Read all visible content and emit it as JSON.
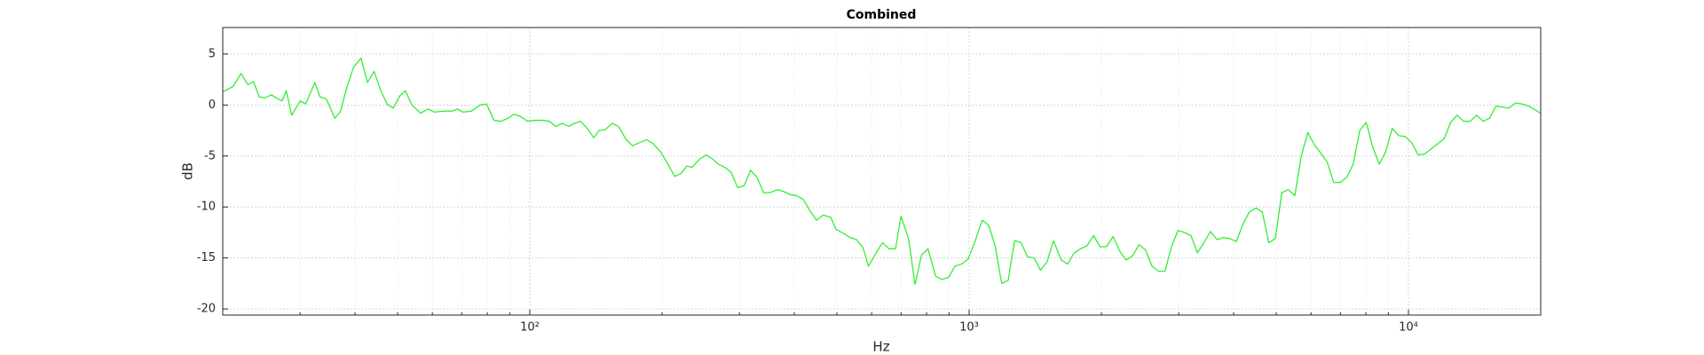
{
  "chart_data": {
    "type": "line",
    "title": "Combined",
    "x_label": "Hz",
    "y_label": "dB",
    "xscale": "log",
    "grid": true,
    "xlim": [
      20,
      20000
    ],
    "ylim": [
      -20.6,
      7.6
    ],
    "xticks": [
      {
        "value": 100,
        "label": "10²"
      },
      {
        "value": 1000,
        "label": "10³"
      },
      {
        "value": 10000,
        "label": "10⁴"
      }
    ],
    "xminorticks": [
      30,
      40,
      50,
      60,
      70,
      80,
      90,
      200,
      300,
      400,
      500,
      600,
      700,
      800,
      900,
      2000,
      3000,
      4000,
      5000,
      6000,
      7000,
      8000,
      9000
    ],
    "yticks": [
      -20,
      -15,
      -10,
      -5,
      0,
      5
    ],
    "x": [
      20,
      21.1,
      22.0,
      22.8,
      23.5,
      24.2,
      24.9,
      25.8,
      26.7,
      27.3,
      27.9,
      28.7,
      30.0,
      30.9,
      32.4,
      33.3,
      34.4,
      36.0,
      37.1,
      38.3,
      39.7,
      41.3,
      42.7,
      44.2,
      45.7,
      47.3,
      48.9,
      50.6,
      52.1,
      53.9,
      56.4,
      58.7,
      60.7,
      63.5,
      66.5,
      68.4,
      70.4,
      73.6,
      77.0,
      79.7,
      82.9,
      85.8,
      89.3,
      91.9,
      95.0,
      98.9,
      102.9,
      107.0,
      110.7,
      114.6,
      118.5,
      122.6,
      126.2,
      130.5,
      135.1,
      139.8,
      143.8,
      148.7,
      153.9,
      159.2,
      165.7,
      171.4,
      177.4,
      184.5,
      190.9,
      198.6,
      205.5,
      213.8,
      221.2,
      227.6,
      234.2,
      243.6,
      252.0,
      260.8,
      268.3,
      277.6,
      287.2,
      297.2,
      307.5,
      318.1,
      329.0,
      340.4,
      352.2,
      366.4,
      379.1,
      392.2,
      405.8,
      420.1,
      434.5,
      449.5,
      465.1,
      483.9,
      497.7,
      517.9,
      535.8,
      554.3,
      573.5,
      590.0,
      614.0,
      635.3,
      657.2,
      680.0,
      699.6,
      728.0,
      753.1,
      779.2,
      806.2,
      838.8,
      867.9,
      897.9,
      928.9,
      961.2,
      994.3,
      1029,
      1071,
      1108,
      1146,
      1186,
      1227,
      1269,
      1313,
      1359,
      1406,
      1454,
      1504,
      1556,
      1620,
      1675,
      1733,
      1794,
      1856,
      1920,
      1986,
      2055,
      2126,
      2200,
      2276,
      2355,
      2436,
      2520,
      2608,
      2698,
      2791,
      2888,
      2988,
      3091,
      3198,
      3309,
      3423,
      3542,
      3664,
      3791,
      3922,
      4058,
      4198,
      4343,
      4494,
      4649,
      4810,
      4977,
      5149,
      5327,
      5512,
      5702,
      5900,
      6104,
      6315,
      6534,
      6760,
      6994,
      7236,
      7486,
      7746,
      8014,
      8291,
      8578,
      8875,
      9185,
      9502,
      9831,
      10171,
      10524,
      10887,
      11264,
      11654,
      12058,
      12475,
      12906,
      13353,
      13815,
      14294,
      14791,
      15298,
      15826,
      16375,
      16943,
      17528,
      18136,
      18766,
      20000
    ],
    "series": [
      {
        "color": "#33ee33",
        "values": [
          1.3,
          1.8,
          3.1,
          2.0,
          2.3,
          0.8,
          0.7,
          1.0,
          0.6,
          0.4,
          1.4,
          -1.0,
          0.4,
          0.1,
          2.2,
          0.8,
          0.6,
          -1.3,
          -0.6,
          1.7,
          3.7,
          4.6,
          2.2,
          3.3,
          1.5,
          0.1,
          -0.3,
          0.9,
          1.4,
          0.0,
          -0.8,
          -0.4,
          -0.7,
          -0.6,
          -0.6,
          -0.4,
          -0.7,
          -0.6,
          0.0,
          0.1,
          -1.5,
          -1.6,
          -1.3,
          -0.9,
          -1.1,
          -1.6,
          -1.5,
          -1.5,
          -1.6,
          -2.1,
          -1.8,
          -2.1,
          -1.8,
          -1.6,
          -2.3,
          -3.2,
          -2.5,
          -2.4,
          -1.8,
          -2.1,
          -3.4,
          -4.0,
          -3.7,
          -3.4,
          -3.8,
          -4.6,
          -5.7,
          -7.0,
          -6.7,
          -6.0,
          -6.1,
          -5.3,
          -4.9,
          -5.3,
          -5.8,
          -6.1,
          -6.6,
          -8.1,
          -7.9,
          -6.4,
          -7.1,
          -8.6,
          -8.6,
          -8.3,
          -8.5,
          -8.8,
          -8.9,
          -9.3,
          -10.4,
          -11.3,
          -10.8,
          -11.0,
          -12.2,
          -12.6,
          -13.0,
          -13.2,
          -14.0,
          -15.8,
          -14.5,
          -13.5,
          -14.1,
          -14.1,
          -10.9,
          -13.1,
          -17.6,
          -14.7,
          -14.1,
          -16.8,
          -17.1,
          -16.9,
          -15.8,
          -15.6,
          -15.1,
          -13.5,
          -11.3,
          -11.8,
          -13.8,
          -17.5,
          -17.2,
          -13.3,
          -13.5,
          -14.9,
          -15.0,
          -16.2,
          -15.4,
          -13.3,
          -15.2,
          -15.6,
          -14.5,
          -14.1,
          -13.8,
          -12.8,
          -13.9,
          -13.9,
          -12.9,
          -14.3,
          -15.2,
          -14.8,
          -13.7,
          -14.2,
          -15.8,
          -16.3,
          -16.3,
          -13.9,
          -12.3,
          -12.5,
          -12.8,
          -14.5,
          -13.5,
          -12.4,
          -13.2,
          -13.0,
          -13.1,
          -13.4,
          -11.7,
          -10.5,
          -10.1,
          -10.5,
          -13.5,
          -13.1,
          -8.6,
          -8.3,
          -8.9,
          -5.0,
          -2.7,
          -3.9,
          -4.7,
          -5.6,
          -7.6,
          -7.6,
          -7.1,
          -5.8,
          -2.5,
          -1.7,
          -4.1,
          -5.8,
          -4.6,
          -2.3,
          -3.0,
          -3.1,
          -3.7,
          -4.9,
          -4.8,
          -4.3,
          -3.8,
          -3.3,
          -1.7,
          -1.0,
          -1.6,
          -1.6,
          -1.0,
          -1.6,
          -1.3,
          -0.1,
          -0.2,
          -0.3,
          0.2,
          0.1,
          -0.1,
          -0.8
        ]
      }
    ]
  }
}
